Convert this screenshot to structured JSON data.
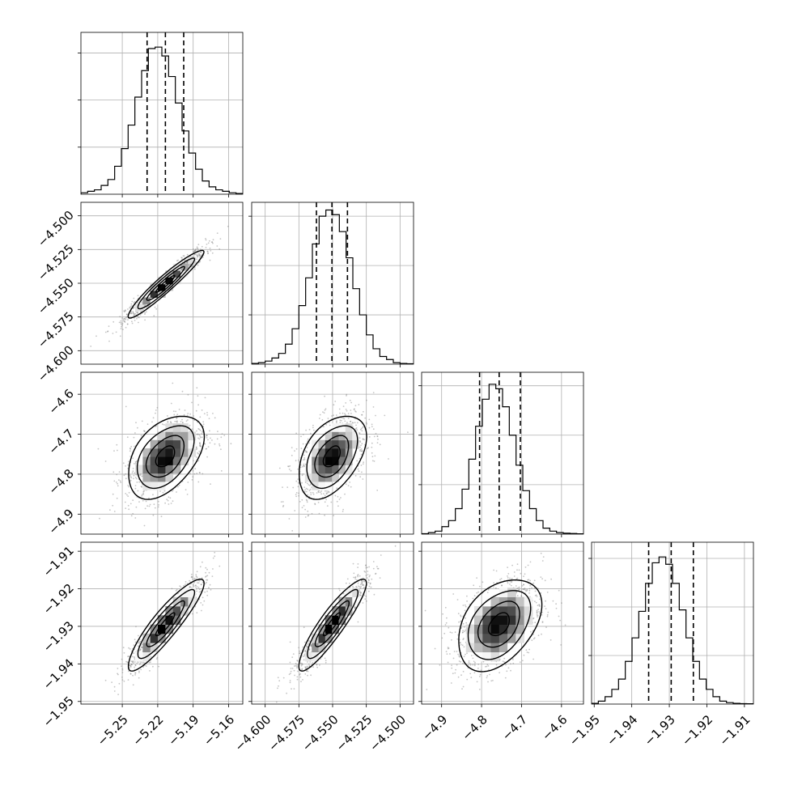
{
  "chart_data": {
    "type": "corner",
    "parameters": 4,
    "ranges": [
      [
        -5.285,
        -5.148
      ],
      [
        -4.61,
        -4.49
      ],
      [
        -4.95,
        -4.545
      ],
      [
        -1.9507,
        -1.9076
      ]
    ],
    "ticks": [
      {
        "values": [
          -5.25,
          -5.22,
          -5.19,
          -5.16
        ],
        "labels": [
          "−5.25",
          "−5.22",
          "−5.19",
          "−5.16"
        ]
      },
      {
        "values": [
          -4.6,
          -4.575,
          -4.55,
          -4.525,
          -4.5
        ],
        "labels": [
          "−4.600",
          "−4.575",
          "−4.550",
          "−4.525",
          "−4.500"
        ]
      },
      {
        "values": [
          -4.9,
          -4.8,
          -4.7,
          -4.6
        ],
        "labels": [
          "−4.9",
          "−4.8",
          "−4.7",
          "−4.6"
        ]
      },
      {
        "values": [
          -1.95,
          -1.94,
          -1.93,
          -1.92,
          -1.91
        ],
        "labels": [
          "−1.95",
          "−1.94",
          "−1.93",
          "−1.92",
          "−1.91"
        ]
      }
    ],
    "quantiles": [
      [
        -5.229,
        -5.2135,
        -5.198
      ],
      [
        -4.562,
        -4.5505,
        -4.539
      ],
      [
        -4.805,
        -4.756,
        -4.703
      ],
      [
        -1.9355,
        -1.9295,
        -1.9236
      ]
    ],
    "histograms": [
      {
        "counts": [
          1,
          2,
          3,
          6,
          10,
          19,
          31,
          47,
          66,
          84,
          99,
          100,
          94,
          80,
          62,
          43,
          28,
          17,
          9,
          5,
          3,
          2,
          1,
          0.5
        ],
        "ymax": 110
      },
      {
        "counts": [
          0.5,
          1,
          2,
          4,
          7,
          13,
          23,
          38,
          56,
          78,
          96,
          100,
          97,
          86,
          69,
          49,
          32,
          19,
          10,
          5,
          3,
          1,
          0.5,
          0.3
        ],
        "ymax": 105
      },
      {
        "counts": [
          0.3,
          1,
          2,
          5,
          9,
          17,
          30,
          50,
          72,
          90,
          100,
          97,
          85,
          66,
          46,
          29,
          17,
          9,
          4,
          2,
          1,
          0.6,
          0.4,
          0.2
        ],
        "ymax": 108
      },
      {
        "counts": [
          0.5,
          2,
          5,
          10,
          17,
          29,
          45,
          63,
          82,
          96,
          100,
          95,
          82,
          64,
          45,
          29,
          17,
          10,
          5,
          2,
          1,
          0.5,
          0.3,
          0.2
        ],
        "ymax": 110
      }
    ],
    "histogram_grid": [
      [
        32,
        64,
        96
      ],
      [
        32,
        64,
        96
      ],
      [
        33,
        66,
        99
      ],
      [
        33,
        66,
        99
      ]
    ],
    "correlations": [
      [
        1,
        0.95,
        0.45,
        0.9
      ],
      [
        0.95,
        1,
        0.45,
        0.9
      ],
      [
        0.45,
        0.45,
        1,
        0.4
      ],
      [
        0.9,
        0.9,
        0.4,
        1
      ]
    ],
    "sigmas": [
      0.016,
      0.0125,
      0.052,
      0.0061
    ],
    "centers": [
      -5.2135,
      -4.5505,
      -4.756,
      -1.9295
    ],
    "contour_levels": [
      0.5,
      1.0,
      1.5,
      2.0
    ],
    "grid": true,
    "colors": {
      "hist": "#000000",
      "points": "#7f7f7f",
      "contour": "#000000",
      "density": "#000000"
    }
  }
}
